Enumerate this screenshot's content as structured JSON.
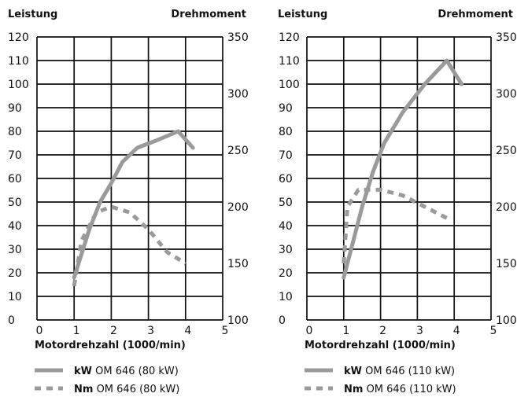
{
  "chart_data": [
    {
      "type": "line",
      "ylabel_left": "Leistung",
      "ylabel_right": "Drehmoment",
      "xlabel": "Motordrehzahl (1000/min)",
      "xlim": [
        0,
        5
      ],
      "ylim_left": [
        0,
        120
      ],
      "ylim_right": [
        100,
        350
      ],
      "x_ticks": [
        "0",
        "1",
        "2",
        "3",
        "4",
        "5"
      ],
      "y_ticks_left": [
        "0",
        "10",
        "20",
        "30",
        "40",
        "50",
        "60",
        "70",
        "80",
        "90",
        "100",
        "110",
        "120"
      ],
      "y_ticks_right": [
        "100",
        "150",
        "200",
        "250",
        "300",
        "350"
      ],
      "grid": true,
      "series": [
        {
          "name_bold": "kW",
          "name": "OM 646 (80 kW)",
          "axis": "left",
          "style": "solid",
          "color": "#9a9a9a",
          "x": [
            1.0,
            1.4,
            1.7,
            2.0,
            2.3,
            2.7,
            3.2,
            3.8,
            4.2
          ],
          "y": [
            18,
            38,
            50,
            58,
            67,
            73,
            76,
            80,
            73
          ]
        },
        {
          "name_bold": "Nm",
          "name": "OM 646 (80 kW)",
          "axis": "right",
          "style": "dashed",
          "color": "#9a9a9a",
          "x": [
            1.0,
            1.2,
            1.6,
            2.0,
            2.5,
            3.0,
            3.5,
            4.0
          ],
          "y": [
            130,
            170,
            195,
            200,
            195,
            180,
            160,
            150
          ]
        }
      ]
    },
    {
      "type": "line",
      "ylabel_left": "Leistung",
      "ylabel_right": "Drehmoment",
      "xlabel": "Motordrehzahl (1000/min)",
      "xlim": [
        0,
        5
      ],
      "ylim_left": [
        0,
        120
      ],
      "ylim_right": [
        100,
        350
      ],
      "x_ticks": [
        "0",
        "1",
        "2",
        "3",
        "4",
        "5"
      ],
      "y_ticks_left": [
        "0",
        "10",
        "20",
        "30",
        "40",
        "50",
        "60",
        "70",
        "80",
        "90",
        "100",
        "110",
        "120"
      ],
      "y_ticks_right": [
        "100",
        "150",
        "200",
        "250",
        "300",
        "350"
      ],
      "grid": true,
      "series": [
        {
          "name_bold": "kW",
          "name": "OM 646 (110 kW)",
          "axis": "left",
          "style": "solid",
          "color": "#9a9a9a",
          "x": [
            1.0,
            1.2,
            1.5,
            1.8,
            2.1,
            2.6,
            3.2,
            3.8,
            4.2
          ],
          "y": [
            18,
            30,
            48,
            63,
            75,
            88,
            100,
            110,
            100
          ]
        },
        {
          "name_bold": "Nm",
          "name": "OM 646 (110 kW)",
          "axis": "right",
          "style": "dashed",
          "color": "#9a9a9a",
          "x": [
            1.0,
            1.1,
            1.4,
            2.0,
            2.6,
            3.2,
            3.8
          ],
          "y": [
            150,
            200,
            215,
            215,
            210,
            200,
            190
          ]
        }
      ]
    }
  ]
}
